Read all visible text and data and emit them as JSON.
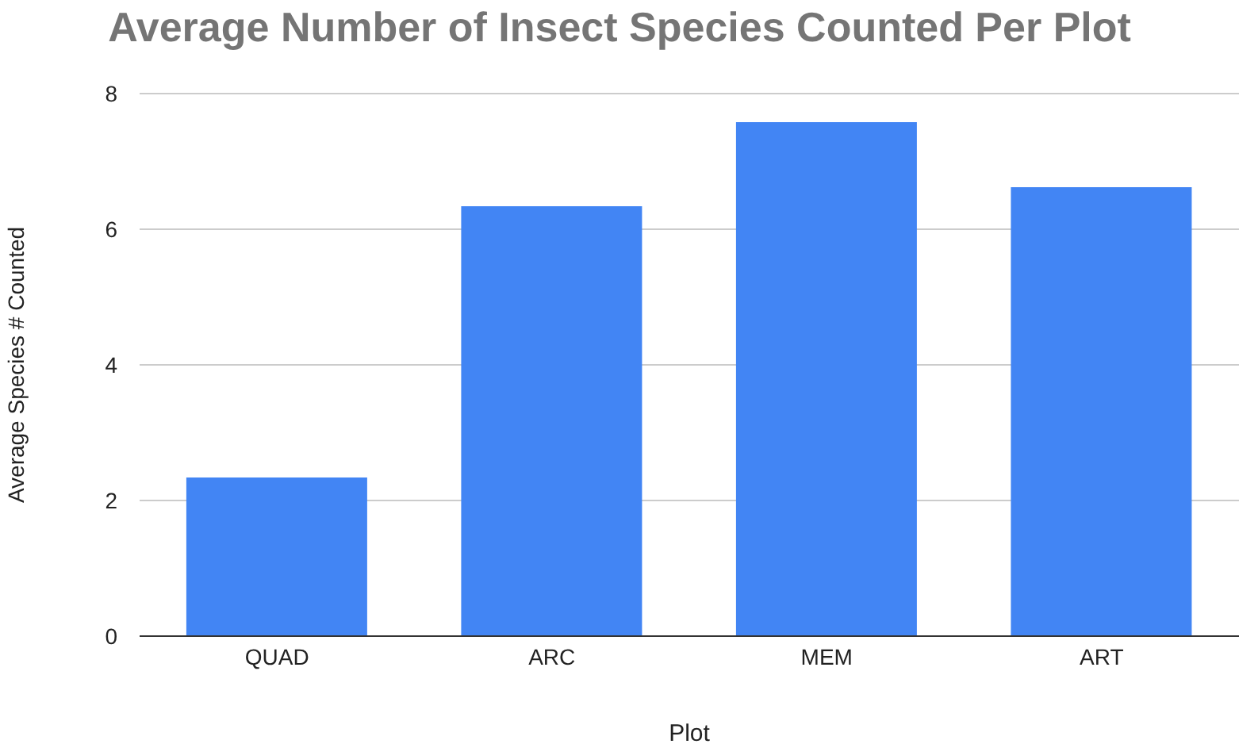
{
  "chart_data": {
    "type": "bar",
    "title": "Average Number of Insect Species Counted Per Plot",
    "xlabel": "Plot",
    "ylabel": "Average Species # Counted",
    "categories": [
      "QUAD",
      "ARC",
      "MEM",
      "ART"
    ],
    "values": [
      2.34,
      6.34,
      7.58,
      6.62
    ],
    "color": "#4285f4",
    "ylim": [
      0,
      8
    ],
    "yticks": [
      0,
      2,
      4,
      6,
      8
    ],
    "grid": "y"
  }
}
